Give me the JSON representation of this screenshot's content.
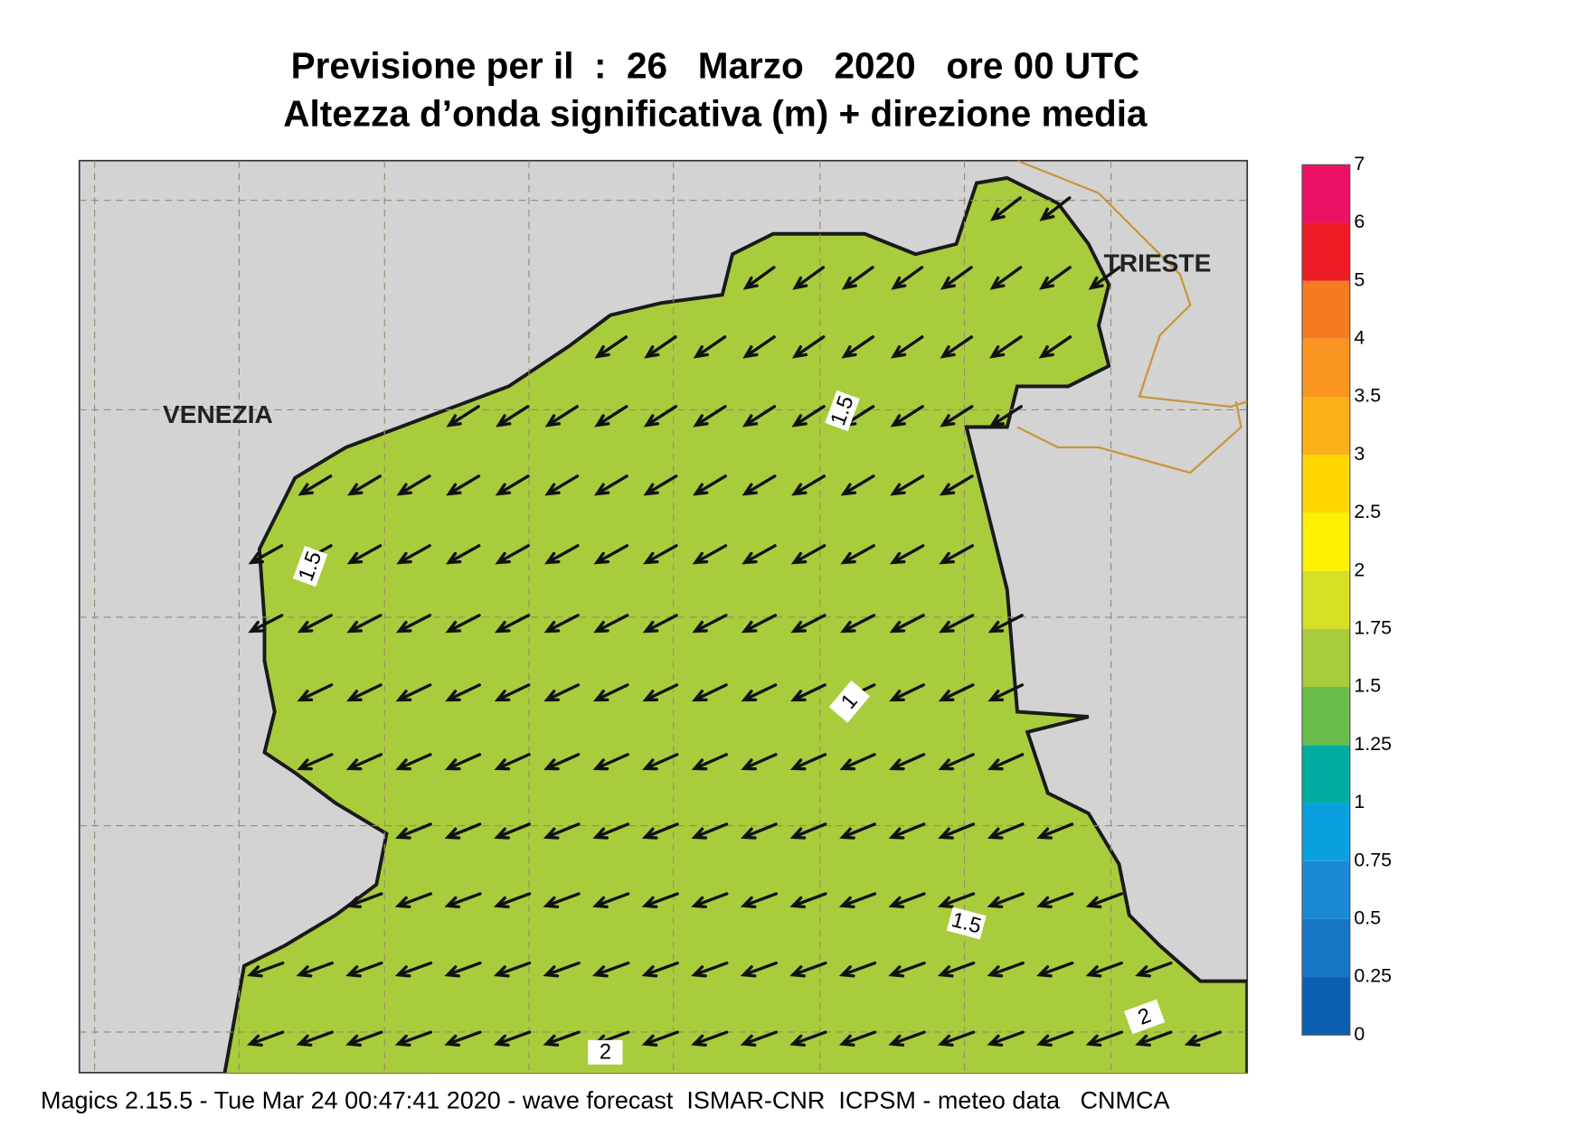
{
  "title": [
    "Previsione per il  :  26   Marzo   2020   ore 00 UTC",
    "Altezza d’onda significativa (m) + direzione media"
  ],
  "places": [
    "VENEZIA",
    "TRIESTE"
  ],
  "contour_labels": [
    1.5,
    1.5,
    1,
    1.5,
    2,
    2
  ],
  "colorbar": {
    "levels": [
      0,
      0.25,
      0.5,
      0.75,
      1,
      1.25,
      1.5,
      1.75,
      2,
      2.5,
      3,
      3.5,
      4,
      5,
      6,
      7
    ],
    "colors": [
      "#0b5fb0",
      "#1676c4",
      "#1a8ad6",
      "#0aa0e0",
      "#00ada0",
      "#6abd4a",
      "#a9cc3c",
      "#d5e025",
      "#fff200",
      "#ffd700",
      "#fbb017",
      "#f99520",
      "#f47b20",
      "#ed1c24",
      "#ec1165"
    ]
  },
  "footer": "Magics 2.15.5 - Tue Mar 24 00:47:41 2020 - wave forecast  ISMAR-CNR  ICPSM - meteo data   CNMCA"
}
